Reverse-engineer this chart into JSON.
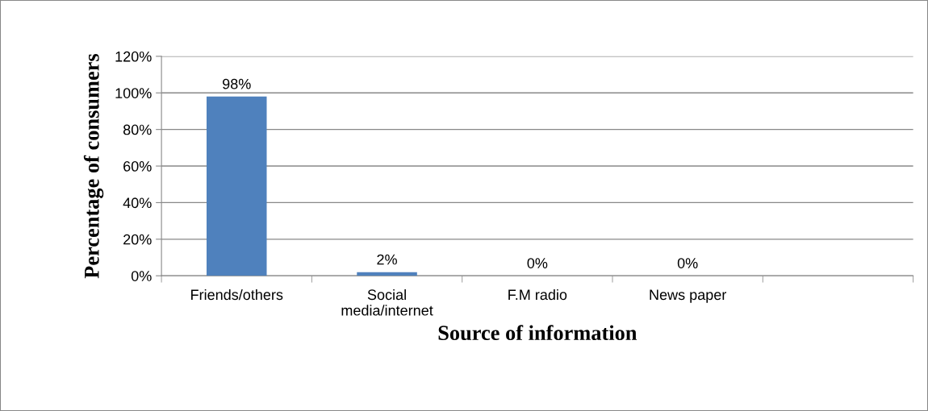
{
  "chart_data": {
    "type": "bar",
    "xlabel": "Source of information",
    "ylabel": "Percentage of consumers",
    "categories": [
      "Friends/others",
      "Social\nmedia/internet",
      "F.M radio",
      "News paper",
      null
    ],
    "values": [
      98,
      2,
      0,
      0,
      null
    ],
    "value_labels": [
      "98%",
      "2%",
      "0%",
      "0%",
      null
    ],
    "color": "#4f81bd",
    "ylim": [
      0,
      120
    ],
    "yticks": [
      {
        "value": 0,
        "label": "0%"
      },
      {
        "value": 20,
        "label": "20%"
      },
      {
        "value": 40,
        "label": "40%"
      },
      {
        "value": 60,
        "label": "60%"
      },
      {
        "value": 80,
        "label": "80%"
      },
      {
        "value": 100,
        "label": "100%"
      },
      {
        "value": 120,
        "label": "120%"
      }
    ],
    "grid": "y",
    "legend": false
  }
}
